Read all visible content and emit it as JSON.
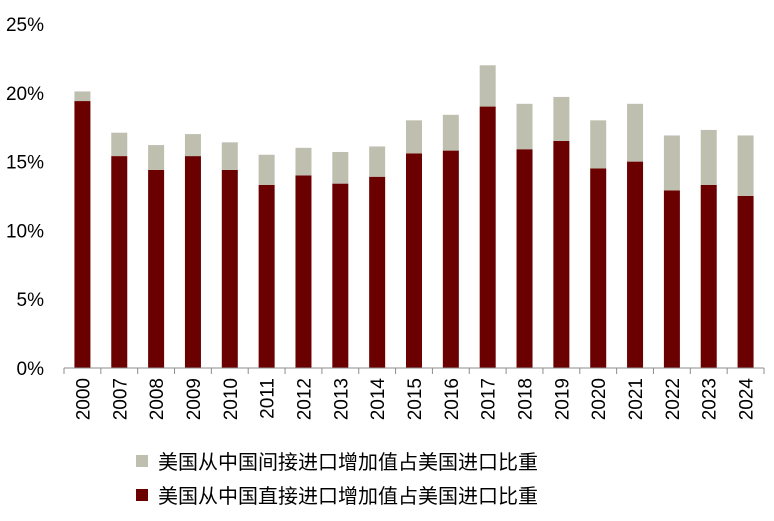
{
  "chart_data": {
    "type": "bar",
    "stacked": true,
    "categories": [
      "2000",
      "2007",
      "2008",
      "2009",
      "2010",
      "2011",
      "2012",
      "2013",
      "2014",
      "2015",
      "2016",
      "2017",
      "2018",
      "2019",
      "2020",
      "2021",
      "2022",
      "2023",
      "2024"
    ],
    "series": [
      {
        "name": "美国从中国直接进口增加值占美国进口比重",
        "color": "#6b0000",
        "values": [
          19.4,
          15.4,
          14.4,
          15.4,
          14.4,
          13.3,
          14.0,
          13.4,
          13.9,
          15.6,
          15.8,
          19.0,
          15.9,
          16.5,
          14.5,
          15.0,
          12.9,
          13.3,
          12.5
        ]
      },
      {
        "name": "美国从中国间接进口增加值占美国进口比重",
        "color": "#bfbfb0",
        "values": [
          0.7,
          1.7,
          1.8,
          1.6,
          2.0,
          2.2,
          2.0,
          2.3,
          2.2,
          2.4,
          2.6,
          3.0,
          3.3,
          3.2,
          3.5,
          4.2,
          4.0,
          4.0,
          4.4
        ]
      }
    ],
    "yticks": [
      "0%",
      "5%",
      "10%",
      "15%",
      "20%",
      "25%"
    ],
    "ylim": [
      0,
      25
    ],
    "grid": false,
    "legend_position": "bottom"
  }
}
